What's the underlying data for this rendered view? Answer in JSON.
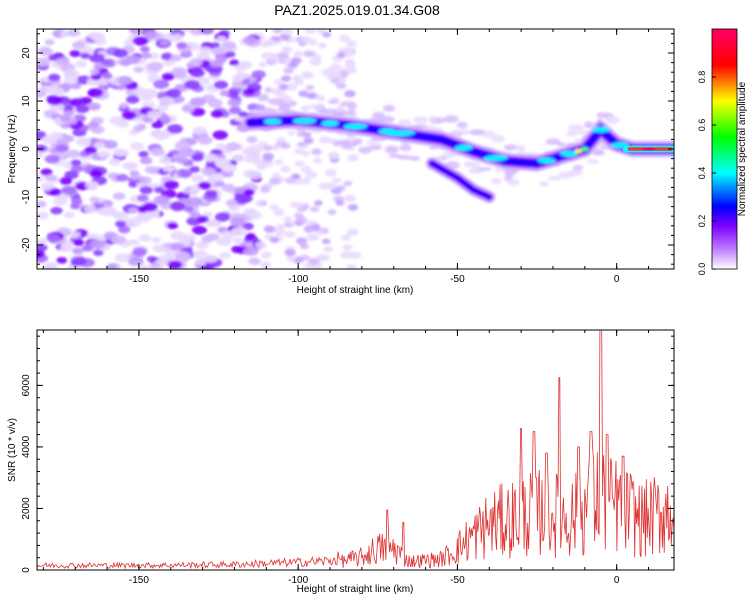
{
  "figure": {
    "title": "PAZ1.2025.019.01.34.G08"
  },
  "chart_data": [
    {
      "type": "heatmap",
      "xlabel": "Height of straight line (km)",
      "ylabel": "Frequency (Hz)",
      "xlim": [
        -182,
        18
      ],
      "ylim": [
        -25,
        25
      ],
      "xticks": [
        -150,
        -100,
        -50,
        0
      ],
      "yticks": [
        20,
        10,
        0,
        -10,
        -20
      ],
      "colorbar": {
        "label": "Normalized spectral amplitude",
        "range": [
          0,
          1
        ],
        "ticks": [
          "0.0",
          "0.2",
          "0.4",
          "0.6",
          "0.8"
        ],
        "colors": [
          "#ffffff",
          "#c080ff",
          "#7b00ff",
          "#0000ff",
          "#00ffff",
          "#00ff00",
          "#ffff00",
          "#ff0000",
          "#ff0066"
        ]
      },
      "ridge": [
        {
          "x": -115,
          "y": 5.5
        },
        {
          "x": -100,
          "y": 6
        },
        {
          "x": -85,
          "y": 5
        },
        {
          "x": -70,
          "y": 3.5
        },
        {
          "x": -55,
          "y": 2
        },
        {
          "x": -45,
          "y": -0.5
        },
        {
          "x": -35,
          "y": -2.5
        },
        {
          "x": -25,
          "y": -3
        },
        {
          "x": -15,
          "y": -1
        },
        {
          "x": -10,
          "y": 0
        },
        {
          "x": -5,
          "y": 4
        },
        {
          "x": 0,
          "y": 1
        },
        {
          "x": 5,
          "y": 0
        },
        {
          "x": 18,
          "y": 0
        }
      ],
      "branch": [
        {
          "x": -58,
          "y": -3
        },
        {
          "x": -50,
          "y": -6
        },
        {
          "x": -45,
          "y": -8.5
        },
        {
          "x": -40,
          "y": -10
        }
      ]
    },
    {
      "type": "line",
      "xlabel": "Height of straight line (km)",
      "ylabel": "SNR (10 * v/v)",
      "xlim": [
        -182,
        18
      ],
      "ylim": [
        0,
        7800
      ],
      "xticks": [
        -150,
        -100,
        -50,
        0
      ],
      "yticks": [
        0,
        2000,
        4000,
        6000
      ],
      "series": [
        {
          "color": "#e03030",
          "envelope": [
            {
              "x": -182,
              "y": 150
            },
            {
              "x": -150,
              "y": 150
            },
            {
              "x": -120,
              "y": 180
            },
            {
              "x": -100,
              "y": 250
            },
            {
              "x": -90,
              "y": 300
            },
            {
              "x": -80,
              "y": 600
            },
            {
              "x": -75,
              "y": 1000
            },
            {
              "x": -70,
              "y": 1000
            },
            {
              "x": -65,
              "y": 400
            },
            {
              "x": -55,
              "y": 500
            },
            {
              "x": -50,
              "y": 1000
            },
            {
              "x": -45,
              "y": 1600
            },
            {
              "x": -40,
              "y": 2100
            },
            {
              "x": -30,
              "y": 2500
            },
            {
              "x": -25,
              "y": 2700
            },
            {
              "x": -20,
              "y": 2600
            },
            {
              "x": -15,
              "y": 2400
            },
            {
              "x": -10,
              "y": 2800
            },
            {
              "x": -6,
              "y": 3500
            },
            {
              "x": -3,
              "y": 3000
            },
            {
              "x": 0,
              "y": 3000
            },
            {
              "x": 3,
              "y": 2800
            },
            {
              "x": 8,
              "y": 2300
            },
            {
              "x": 12,
              "y": 2500
            },
            {
              "x": 18,
              "y": 2900
            }
          ],
          "spikes": [
            {
              "x": -72,
              "y": 1950
            },
            {
              "x": -67,
              "y": 1550
            },
            {
              "x": -30,
              "y": 4600
            },
            {
              "x": -26,
              "y": 4500
            },
            {
              "x": -22,
              "y": 3800
            },
            {
              "x": -18,
              "y": 6250
            },
            {
              "x": -12,
              "y": 4000
            },
            {
              "x": -8,
              "y": 4500
            },
            {
              "x": -5,
              "y": 7800
            },
            {
              "x": -3,
              "y": 4400
            },
            {
              "x": 2,
              "y": 3700
            }
          ]
        }
      ]
    }
  ]
}
